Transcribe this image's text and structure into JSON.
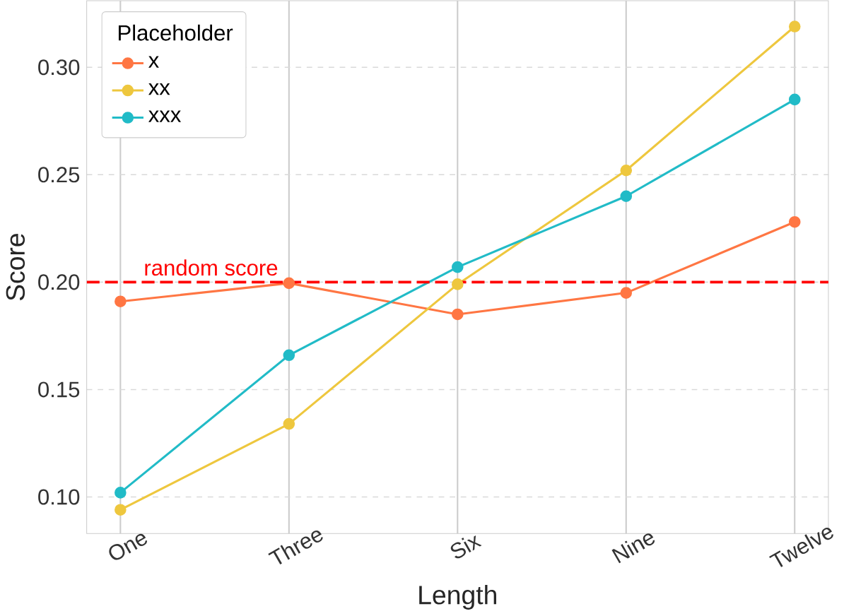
{
  "chart_data": {
    "type": "line",
    "xlabel": "Length",
    "ylabel": "Score",
    "legend_title": "Placeholder",
    "categories": [
      "One",
      "Three",
      "Six",
      "Nine",
      "Twelve"
    ],
    "series": [
      {
        "name": "x",
        "color": "#ff7643",
        "values": [
          0.191,
          0.1995,
          0.185,
          0.195,
          0.228
        ]
      },
      {
        "name": "xx",
        "color": "#eec73e",
        "values": [
          0.094,
          0.134,
          0.199,
          0.252,
          0.319
        ]
      },
      {
        "name": "xxx",
        "color": "#21bbc7",
        "values": [
          0.102,
          0.166,
          0.207,
          0.24,
          0.285
        ]
      }
    ],
    "ylim": [
      0.083,
      0.331
    ],
    "yticks": [
      {
        "value": 0.1,
        "label": "0.10"
      },
      {
        "value": 0.15,
        "label": "0.15"
      },
      {
        "value": 0.2,
        "label": "0.20"
      },
      {
        "value": 0.25,
        "label": "0.25"
      },
      {
        "value": 0.3,
        "label": "0.30"
      }
    ],
    "ref_lines": [
      {
        "axis": "y",
        "value": 0.2,
        "label": "random score",
        "color": "#ff0000",
        "line_style": "dashed"
      }
    ],
    "grid": true,
    "legend": "top left",
    "marker": "circle",
    "line_style": "solid"
  }
}
